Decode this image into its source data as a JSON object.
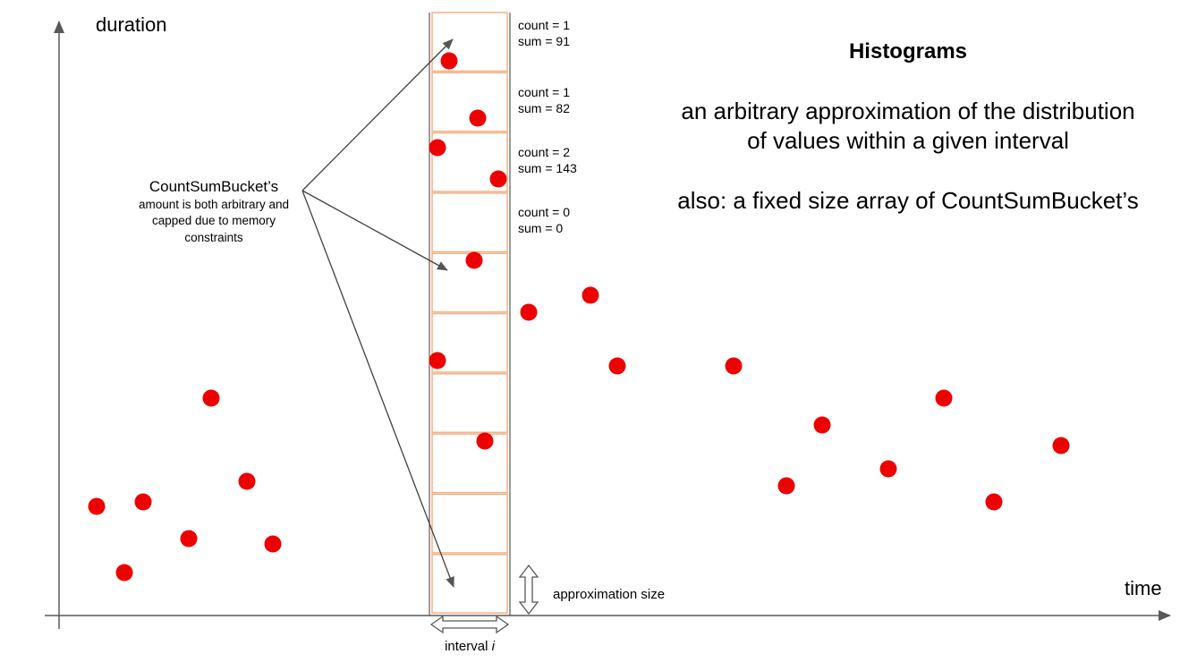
{
  "axes": {
    "y_label": "duration",
    "x_label": "time"
  },
  "title": "Histograms",
  "description": {
    "line1": "an arbitrary approximation of the distribution",
    "line2": "of values within a given interval",
    "line3": "also: a fixed size array of CountSumBucket’s"
  },
  "annotation": {
    "title": "CountSumBucket’s",
    "line1": "amount is both arbitrary and",
    "line2": "capped due to memory",
    "line3": "constraints"
  },
  "buckets": [
    {
      "count": "count = 1",
      "sum": "sum = 91"
    },
    {
      "count": "count = 1",
      "sum": "sum = 82"
    },
    {
      "count": "count = 2",
      "sum": "sum = 143"
    },
    {
      "count": "count = 0",
      "sum": "sum = 0"
    }
  ],
  "approximation_size_label": "approximation size",
  "interval_label": "interval",
  "interval_variable": "i",
  "colors": {
    "point": "#ee0000",
    "bucket_border": "#f4b183",
    "axis": "#595959",
    "arrow": "#404040"
  }
}
